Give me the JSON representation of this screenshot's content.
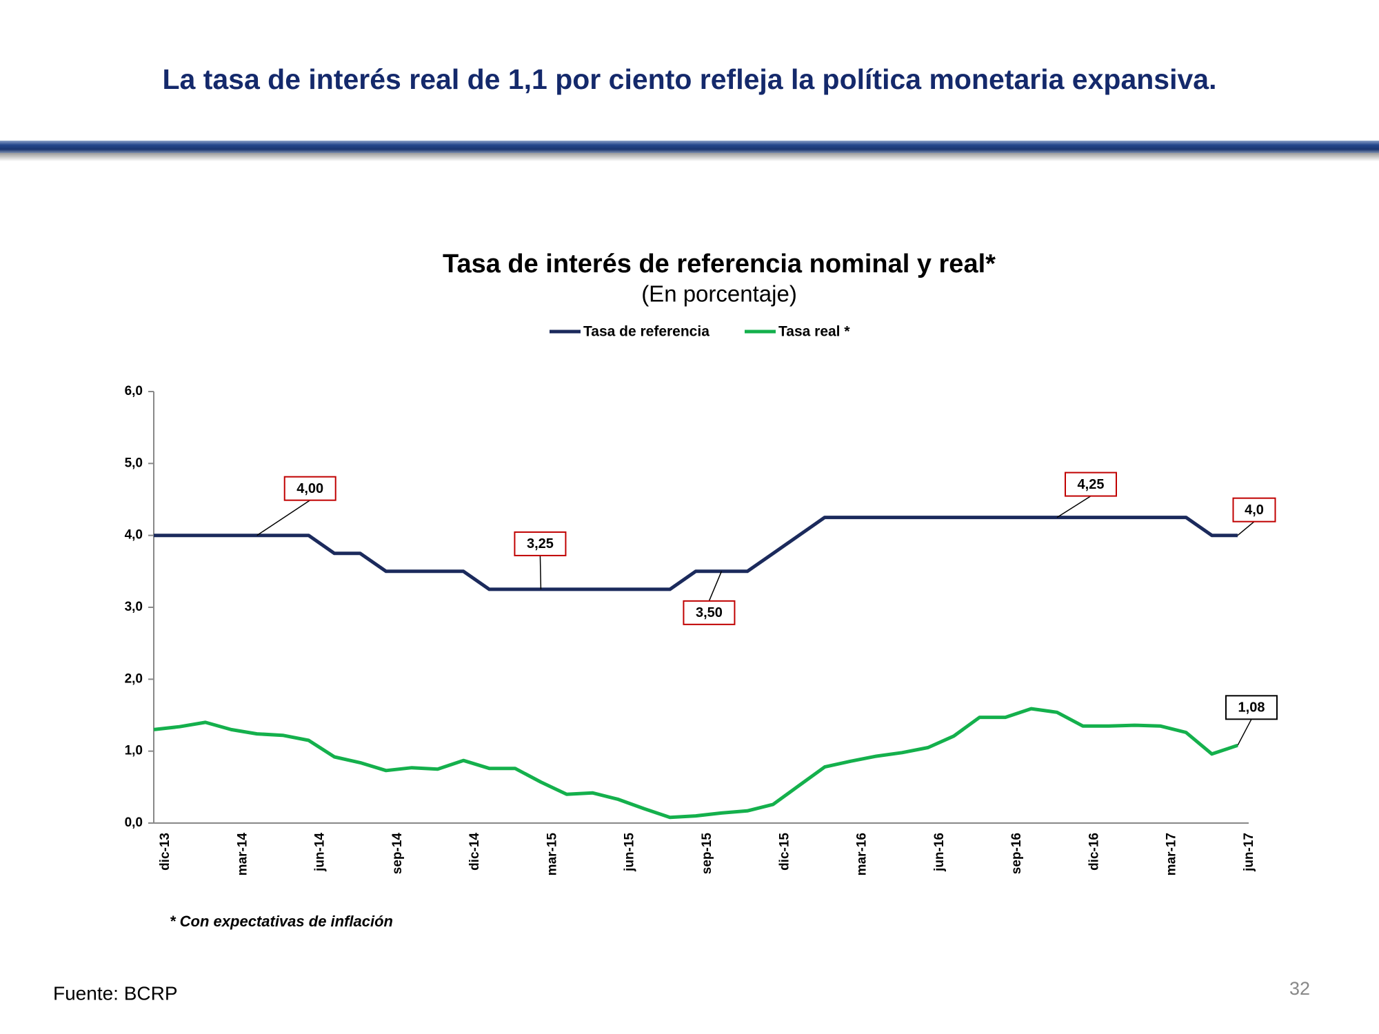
{
  "slide": {
    "title": "La tasa de interés real de 1,1 por ciento refleja la política monetaria expansiva.",
    "source": "Fuente: BCRP",
    "page_number": "32"
  },
  "chart_data": {
    "type": "line",
    "title": "Tasa de interés de referencia nominal y real*",
    "subtitle": "(En porcentaje)",
    "footnote": "* Con expectativas de inflación",
    "categories": [
      "dic-13",
      null,
      null,
      "mar-14",
      null,
      null,
      "jun-14",
      null,
      null,
      "sep-14",
      null,
      null,
      "dic-14",
      null,
      null,
      "mar-15",
      null,
      null,
      "jun-15",
      null,
      null,
      "sep-15",
      null,
      null,
      "dic-15",
      null,
      null,
      "mar-16",
      null,
      null,
      "jun-16",
      null,
      null,
      "sep-16",
      null,
      null,
      "dic-16",
      null,
      null,
      "mar-17",
      null,
      null,
      "jun-17"
    ],
    "series": [
      {
        "name": "Tasa de referencia",
        "color": "#1b2a5c",
        "values": [
          4.0,
          4.0,
          4.0,
          4.0,
          4.0,
          4.0,
          4.0,
          3.75,
          3.75,
          3.5,
          3.5,
          3.5,
          3.5,
          3.25,
          3.25,
          3.25,
          3.25,
          3.25,
          3.25,
          3.25,
          3.25,
          3.5,
          3.5,
          3.5,
          3.75,
          4.0,
          4.25,
          4.25,
          4.25,
          4.25,
          4.25,
          4.25,
          4.25,
          4.25,
          4.25,
          4.25,
          4.25,
          4.25,
          4.25,
          4.25,
          4.25,
          4.0,
          4.0
        ],
        "value_labels": [
          null,
          null,
          null,
          null,
          "4,00",
          null,
          null,
          null,
          null,
          null,
          null,
          null,
          null,
          null,
          null,
          "3,25",
          null,
          null,
          null,
          null,
          null,
          null,
          "3,50",
          null,
          null,
          null,
          null,
          null,
          null,
          null,
          null,
          null,
          null,
          null,
          null,
          "4,25",
          null,
          null,
          null,
          null,
          null,
          null,
          "4,0"
        ]
      },
      {
        "name": "Tasa real *",
        "color": "#14b04c",
        "values": [
          1.3,
          1.34,
          1.4,
          1.3,
          1.24,
          1.22,
          1.15,
          0.92,
          0.84,
          0.73,
          0.77,
          0.75,
          0.87,
          0.76,
          0.76,
          0.57,
          0.4,
          0.42,
          0.33,
          0.2,
          0.08,
          0.1,
          0.14,
          0.17,
          0.26,
          0.52,
          0.78,
          0.86,
          0.93,
          0.98,
          1.05,
          1.21,
          1.47,
          1.47,
          1.59,
          1.54,
          1.35,
          1.35,
          1.36,
          1.35,
          1.26,
          0.96,
          1.08
        ],
        "value_labels": [
          null,
          null,
          null,
          null,
          null,
          null,
          null,
          null,
          null,
          null,
          null,
          null,
          null,
          null,
          null,
          null,
          null,
          null,
          null,
          null,
          null,
          null,
          null,
          null,
          null,
          null,
          null,
          null,
          null,
          null,
          null,
          null,
          null,
          null,
          null,
          null,
          null,
          null,
          null,
          null,
          null,
          null,
          "1,08"
        ]
      }
    ],
    "ylim": [
      0,
      6
    ],
    "yticks": [
      {
        "value": 0,
        "label": "0,0"
      },
      {
        "value": 1,
        "label": "1,0"
      },
      {
        "value": 2,
        "label": "2,0"
      },
      {
        "value": 3,
        "label": "3,0"
      },
      {
        "value": 4,
        "label": "4,0"
      },
      {
        "value": 5,
        "label": "5,0"
      },
      {
        "value": 6,
        "label": "6,0"
      }
    ],
    "grid": false
  }
}
